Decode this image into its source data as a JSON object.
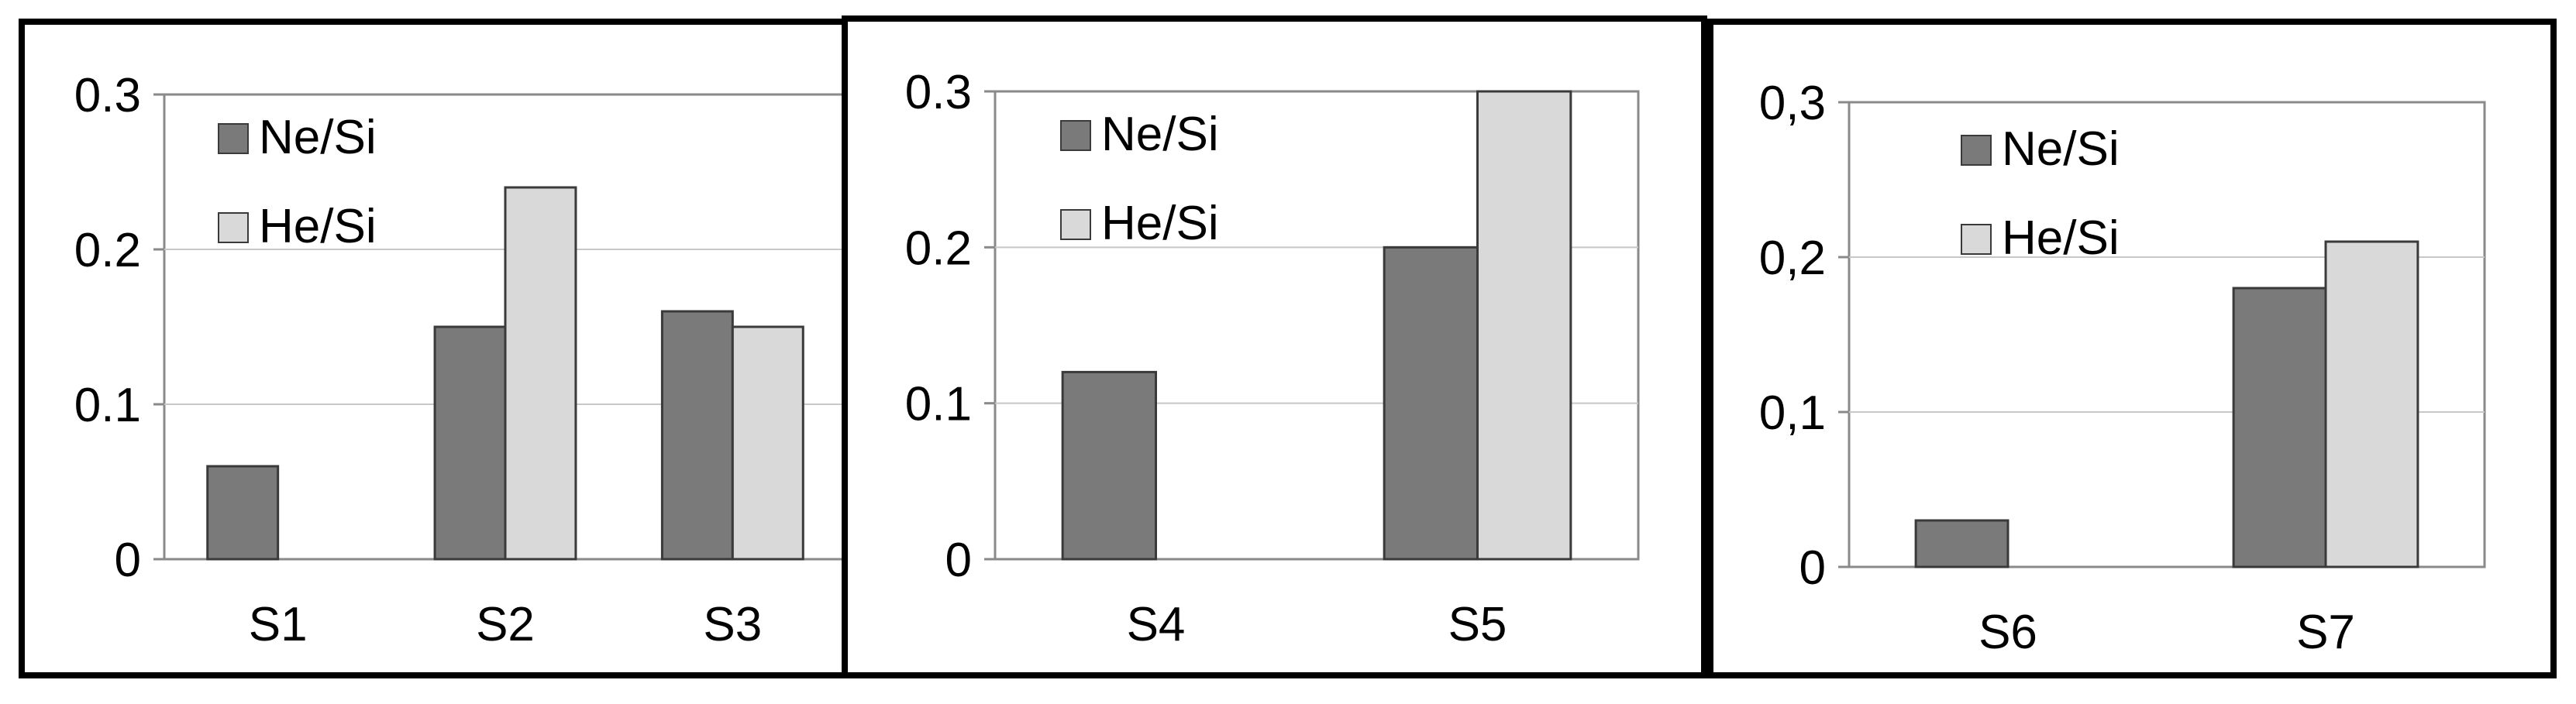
{
  "chart_data": [
    {
      "type": "bar",
      "categories": [
        "S1",
        "S2",
        "S3"
      ],
      "series": [
        {
          "name": "Ne/Si",
          "values": [
            0.06,
            0.15,
            0.16
          ]
        },
        {
          "name": "He/Si",
          "values": [
            0,
            0.24,
            0.15
          ]
        }
      ],
      "ylim": [
        0,
        0.3
      ],
      "yticks": [
        "0",
        "0.1",
        "0.2",
        "0.3"
      ],
      "ytick_values": [
        0,
        0.1,
        0.2,
        0.3
      ],
      "grid": true,
      "legend": "top-left"
    },
    {
      "type": "bar",
      "categories": [
        "S4",
        "S5"
      ],
      "series": [
        {
          "name": "Ne/Si",
          "values": [
            0.12,
            0.2
          ]
        },
        {
          "name": "He/Si",
          "values": [
            0,
            0.3
          ]
        }
      ],
      "ylim": [
        0,
        0.3
      ],
      "yticks": [
        "0",
        "0.1",
        "0.2",
        "0.3"
      ],
      "ytick_values": [
        0,
        0.1,
        0.2,
        0.3
      ],
      "grid": true,
      "legend": "top-left"
    },
    {
      "type": "bar",
      "categories": [
        "S6",
        "S7"
      ],
      "series": [
        {
          "name": "Ne/Si",
          "values": [
            0.03,
            0.18
          ]
        },
        {
          "name": "He/Si",
          "values": [
            0,
            0.21
          ]
        }
      ],
      "ylim": [
        0,
        0.3
      ],
      "yticks": [
        "0",
        "0,1",
        "0,2",
        "0,3"
      ],
      "ytick_values": [
        0,
        0.1,
        0.2,
        0.3
      ],
      "grid": true,
      "legend": "top-left"
    }
  ],
  "colors": {
    "ne_si": "#7a7a7a",
    "he_si": "#d9d9d9",
    "grid": "#c8c8c8",
    "plot_border": "#8a8a8a",
    "frame": "#000000"
  }
}
